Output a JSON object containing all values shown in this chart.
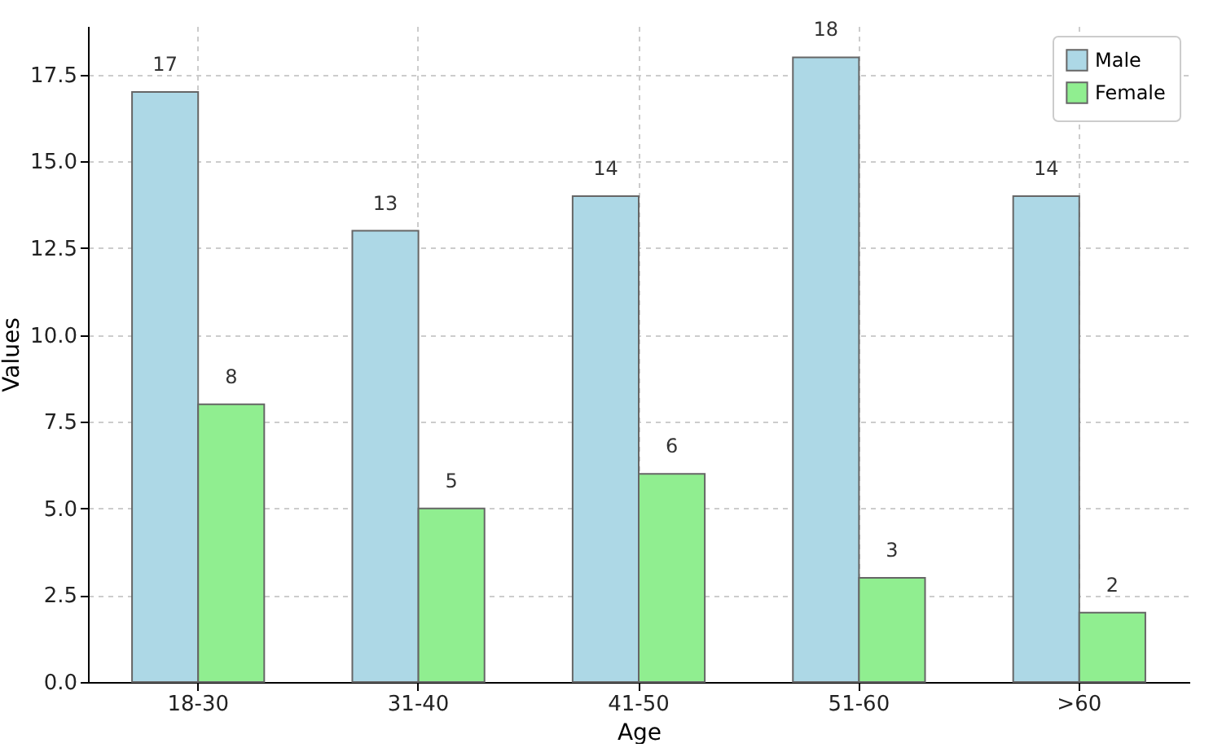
{
  "chart_data": {
    "type": "bar",
    "xlabel": "Age",
    "ylabel": "Values",
    "categories": [
      "18-30",
      "31-40",
      "41-50",
      "51-60",
      ">60"
    ],
    "series": [
      {
        "name": "Male",
        "color": "#add8e6",
        "values": [
          17,
          13,
          14,
          18,
          14
        ]
      },
      {
        "name": "Female",
        "color": "#90ee90",
        "values": [
          8,
          5,
          6,
          3,
          2
        ]
      }
    ],
    "ylim": [
      0,
      18.9
    ],
    "yticks": [
      {
        "value": 0,
        "label": "0.0"
      },
      {
        "value": 2.5,
        "label": "2.5"
      },
      {
        "value": 5,
        "label": "5.0"
      },
      {
        "value": 7.5,
        "label": "7.5"
      },
      {
        "value": 10,
        "label": "10.0"
      },
      {
        "value": 12.5,
        "label": "12.5"
      },
      {
        "value": 15,
        "label": "15.0"
      },
      {
        "value": 17.5,
        "label": "17.5"
      }
    ],
    "grid": true,
    "legend": "top right",
    "data_labels": true
  }
}
